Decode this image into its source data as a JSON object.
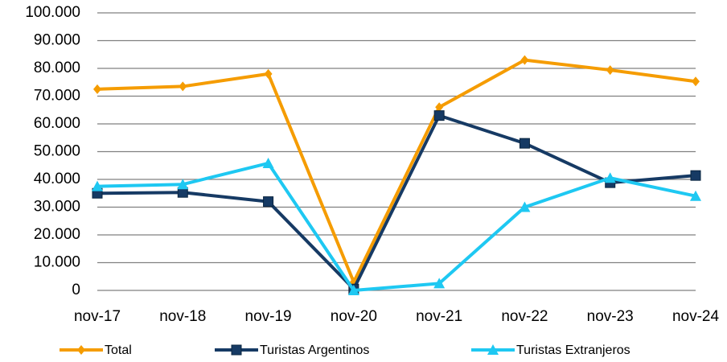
{
  "chart_data": {
    "type": "line",
    "categories": [
      "nov-17",
      "nov-18",
      "nov-19",
      "nov-20",
      "nov-21",
      "nov-22",
      "nov-23",
      "nov-24"
    ],
    "series": [
      {
        "name": "Total",
        "color": "#f59c00",
        "marker": "diamond",
        "values": [
          72500,
          73500,
          78000,
          3000,
          66000,
          83000,
          79400,
          75300
        ]
      },
      {
        "name": "Turistas Argentinos",
        "color": "#163a64",
        "marker": "square",
        "values": [
          35000,
          35300,
          32000,
          500,
          63000,
          53000,
          38800,
          41400
        ]
      },
      {
        "name": "Turistas Extranjeros",
        "color": "#1ec8f2",
        "marker": "triangle",
        "values": [
          37500,
          38200,
          45800,
          0,
          2500,
          30000,
          40500,
          34000
        ]
      }
    ],
    "ylim": [
      0,
      100000
    ],
    "yticks": [
      0,
      {
        "value": 10000,
        "label": "10.000"
      },
      {
        "value": 20000,
        "label": "20.000"
      },
      {
        "value": 30000,
        "label": "30.000"
      },
      {
        "value": 40000,
        "label": "40.000"
      },
      {
        "value": 50000,
        "label": "50.000"
      },
      {
        "value": 60000,
        "label": "60.000"
      },
      {
        "value": 70000,
        "label": "70.000"
      },
      {
        "value": 80000,
        "label": "80.000"
      },
      {
        "value": 90000,
        "label": "90.000"
      },
      {
        "value": 100000,
        "label": "100.000"
      }
    ],
    "grid": true,
    "legend": "bottom"
  }
}
